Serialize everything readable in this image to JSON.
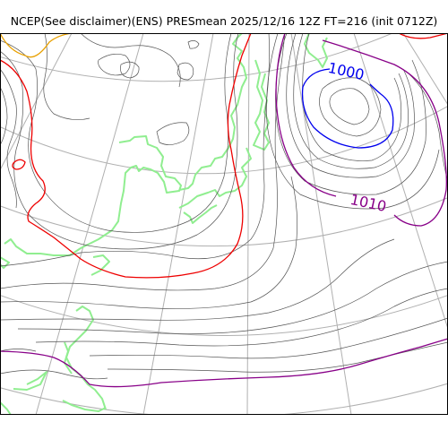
{
  "title": "NCEP(See disclaimer)(ENS) PRESmean 2025/12/16 12Z FT=216 (init 0712Z)",
  "colors": {
    "isobar": "#555555",
    "isobar_1000": "#0000ee",
    "isobar_1010": "#880088",
    "contour_red": "#ee0000",
    "contour_orange": "#e8a000",
    "coastline": "#90ee90",
    "graticule": "#b0b0b0",
    "frame": "#000000"
  },
  "labels": {
    "isobar_1000": "1000",
    "isobar_1010": "1010"
  }
}
